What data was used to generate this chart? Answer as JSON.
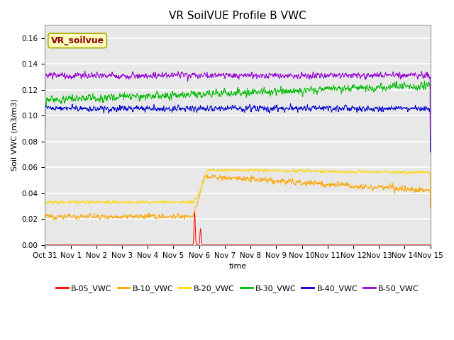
{
  "title": "VR SoilVUE Profile B VWC",
  "ylabel": "Soil VWC (m3/m3)",
  "xlabel": "time",
  "ylim": [
    0,
    0.17
  ],
  "yticks": [
    0.0,
    0.02,
    0.04,
    0.06,
    0.08,
    0.1,
    0.12,
    0.14,
    0.16
  ],
  "xtick_labels": [
    "Oct 31",
    "Nov 1",
    "Nov 2",
    "Nov 3",
    "Nov 4",
    "Nov 5",
    "Nov 6",
    "Nov 7",
    "Nov 8",
    "Nov 9",
    "Nov 10",
    "Nov 11",
    "Nov 12",
    "Nov 13",
    "Nov 14",
    "Nov 15"
  ],
  "annotation_text": "VR_soilvue",
  "annotation_color": "#8B0000",
  "annotation_bg": "#FFFFC0",
  "annotation_edge": "#AAAA00",
  "series": [
    {
      "label": "B-05_VWC",
      "color": "#FF0000",
      "lw": 0.7
    },
    {
      "label": "B-10_VWC",
      "color": "#FFA500",
      "lw": 0.7
    },
    {
      "label": "B-20_VWC",
      "color": "#FFD700",
      "lw": 0.7
    },
    {
      "label": "B-30_VWC",
      "color": "#00BB00",
      "lw": 0.7
    },
    {
      "label": "B-40_VWC",
      "color": "#0000CC",
      "lw": 0.7
    },
    {
      "label": "B-50_VWC",
      "color": "#9400D3",
      "lw": 0.7
    }
  ],
  "bg_color": "#E8E8E8",
  "grid_color": "#FFFFFF",
  "title_fontsize": 11,
  "label_fontsize": 8,
  "tick_fontsize": 7.5,
  "legend_fontsize": 8,
  "n_days": 15,
  "pts_per_day": 96
}
